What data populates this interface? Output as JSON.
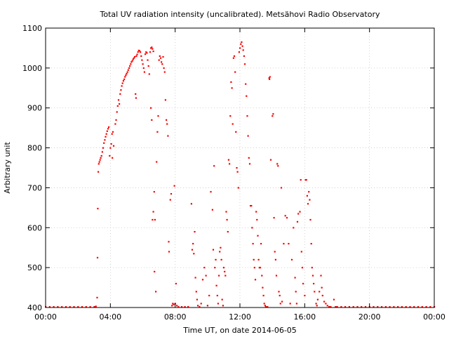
{
  "chart_data": {
    "type": "scatter",
    "title": "Total UV radiation intensity (uncalibrated). Metsähovi Radio Observatory",
    "xlabel": "Time UT, on date 2014-06-05",
    "ylabel": "Arbitrary unit",
    "xlim": [
      0,
      24
    ],
    "ylim": [
      400,
      1100
    ],
    "grid": true,
    "x_ticks": [
      {
        "value": 0,
        "label": "00:00"
      },
      {
        "value": 4,
        "label": "04:00"
      },
      {
        "value": 8,
        "label": "08:00"
      },
      {
        "value": 12,
        "label": "12:00"
      },
      {
        "value": 16,
        "label": "16:00"
      },
      {
        "value": 20,
        "label": "20:00"
      },
      {
        "value": 24,
        "label": "00:00"
      }
    ],
    "y_ticks": [
      {
        "value": 400,
        "label": "400"
      },
      {
        "value": 500,
        "label": "500"
      },
      {
        "value": 600,
        "label": "600"
      },
      {
        "value": 700,
        "label": "700"
      },
      {
        "value": 800,
        "label": "800"
      },
      {
        "value": 900,
        "label": "900"
      },
      {
        "value": 1000,
        "label": "1000"
      },
      {
        "value": 1100,
        "label": "1100"
      }
    ],
    "marker_color": "#ff0000",
    "series": [
      {
        "points": [
          [
            0.0,
            400
          ],
          [
            0.25,
            400
          ],
          [
            0.5,
            400
          ],
          [
            0.75,
            400
          ],
          [
            1.0,
            400
          ],
          [
            1.25,
            400
          ],
          [
            1.5,
            400
          ],
          [
            1.75,
            400
          ],
          [
            2.0,
            400
          ],
          [
            2.25,
            400
          ],
          [
            2.5,
            400
          ],
          [
            2.75,
            400
          ],
          [
            3.0,
            401
          ],
          [
            3.1,
            403
          ],
          [
            3.18,
            425
          ],
          [
            3.2,
            525
          ],
          [
            3.22,
            648
          ],
          [
            3.25,
            740
          ],
          [
            3.28,
            760
          ],
          [
            3.32,
            765
          ],
          [
            3.36,
            770
          ],
          [
            3.4,
            775
          ],
          [
            3.45,
            780
          ],
          [
            3.5,
            790
          ],
          [
            3.55,
            800
          ],
          [
            3.6,
            812
          ],
          [
            3.65,
            820
          ],
          [
            3.7,
            828
          ],
          [
            3.75,
            835
          ],
          [
            3.8,
            842
          ],
          [
            3.85,
            848
          ],
          [
            3.9,
            852
          ],
          [
            3.95,
            780
          ],
          [
            4.0,
            800
          ],
          [
            4.05,
            810
          ],
          [
            4.1,
            835
          ],
          [
            4.12,
            775
          ],
          [
            4.15,
            840
          ],
          [
            4.2,
            805
          ],
          [
            4.3,
            860
          ],
          [
            4.35,
            870
          ],
          [
            4.4,
            890
          ],
          [
            4.45,
            905
          ],
          [
            4.5,
            920
          ],
          [
            4.55,
            910
          ],
          [
            4.6,
            935
          ],
          [
            4.65,
            945
          ],
          [
            4.7,
            955
          ],
          [
            4.75,
            962
          ],
          [
            4.8,
            968
          ],
          [
            4.85,
            972
          ],
          [
            4.9,
            978
          ],
          [
            4.95,
            982
          ],
          [
            5.0,
            986
          ],
          [
            5.05,
            990
          ],
          [
            5.1,
            995
          ],
          [
            5.15,
            1000
          ],
          [
            5.2,
            1005
          ],
          [
            5.25,
            1010
          ],
          [
            5.3,
            1015
          ],
          [
            5.35,
            1018
          ],
          [
            5.4,
            1022
          ],
          [
            5.45,
            1025
          ],
          [
            5.5,
            1028
          ],
          [
            5.55,
            935
          ],
          [
            5.58,
            925
          ],
          [
            5.6,
            1030
          ],
          [
            5.65,
            1034
          ],
          [
            5.7,
            1040
          ],
          [
            5.75,
            1044
          ],
          [
            5.8,
            1043
          ],
          [
            5.85,
            1040
          ],
          [
            5.9,
            1030
          ],
          [
            5.95,
            1020
          ],
          [
            6.0,
            1010
          ],
          [
            6.05,
            1000
          ],
          [
            6.1,
            990
          ],
          [
            6.15,
            1035
          ],
          [
            6.2,
            1040
          ],
          [
            6.25,
            1038
          ],
          [
            6.3,
            1020
          ],
          [
            6.35,
            1005
          ],
          [
            6.4,
            985
          ],
          [
            6.45,
            1040
          ],
          [
            6.5,
            1050
          ],
          [
            6.55,
            1052
          ],
          [
            6.6,
            1048
          ],
          [
            6.65,
            1042
          ],
          [
            6.5,
            900
          ],
          [
            6.55,
            870
          ],
          [
            6.6,
            620
          ],
          [
            6.65,
            640
          ],
          [
            6.7,
            690
          ],
          [
            6.72,
            490
          ],
          [
            6.75,
            620
          ],
          [
            6.8,
            440
          ],
          [
            6.85,
            765
          ],
          [
            6.9,
            840
          ],
          [
            6.95,
            880
          ],
          [
            7.0,
            1020
          ],
          [
            7.05,
            1030
          ],
          [
            7.1,
            1025
          ],
          [
            7.15,
            1015
          ],
          [
            7.2,
            1010
          ],
          [
            7.25,
            1028
          ],
          [
            7.3,
            1000
          ],
          [
            7.35,
            990
          ],
          [
            7.4,
            920
          ],
          [
            7.45,
            870
          ],
          [
            7.5,
            860
          ],
          [
            7.55,
            830
          ],
          [
            7.6,
            565
          ],
          [
            7.62,
            540
          ],
          [
            7.7,
            670
          ],
          [
            7.75,
            685
          ],
          [
            7.8,
            405
          ],
          [
            7.85,
            410
          ],
          [
            7.9,
            408
          ],
          [
            7.95,
            705
          ],
          [
            8.0,
            410
          ],
          [
            8.05,
            460
          ],
          [
            8.1,
            405
          ],
          [
            8.2,
            402
          ],
          [
            8.4,
            401
          ],
          [
            8.6,
            400
          ],
          [
            8.8,
            402
          ],
          [
            9.0,
            660
          ],
          [
            9.05,
            545
          ],
          [
            9.1,
            560
          ],
          [
            9.15,
            535
          ],
          [
            9.2,
            590
          ],
          [
            9.25,
            475
          ],
          [
            9.3,
            440
          ],
          [
            9.35,
            420
          ],
          [
            9.4,
            405
          ],
          [
            9.5,
            402
          ],
          [
            9.6,
            410
          ],
          [
            9.7,
            470
          ],
          [
            9.8,
            500
          ],
          [
            9.9,
            480
          ],
          [
            10.0,
            405
          ],
          [
            10.1,
            430
          ],
          [
            10.2,
            690
          ],
          [
            10.3,
            645
          ],
          [
            10.35,
            545
          ],
          [
            10.4,
            755
          ],
          [
            10.45,
            500
          ],
          [
            10.5,
            520
          ],
          [
            10.55,
            455
          ],
          [
            10.6,
            430
          ],
          [
            10.65,
            410
          ],
          [
            10.7,
            480
          ],
          [
            10.75,
            540
          ],
          [
            10.8,
            550
          ],
          [
            10.85,
            520
          ],
          [
            10.9,
            420
          ],
          [
            10.95,
            405
          ],
          [
            11.0,
            500
          ],
          [
            11.05,
            490
          ],
          [
            11.1,
            480
          ],
          [
            11.15,
            640
          ],
          [
            11.2,
            620
          ],
          [
            11.25,
            590
          ],
          [
            11.3,
            770
          ],
          [
            11.35,
            760
          ],
          [
            11.4,
            880
          ],
          [
            11.45,
            965
          ],
          [
            11.5,
            950
          ],
          [
            11.55,
            860
          ],
          [
            11.6,
            1025
          ],
          [
            11.65,
            1030
          ],
          [
            11.7,
            990
          ],
          [
            11.75,
            840
          ],
          [
            11.8,
            750
          ],
          [
            11.85,
            740
          ],
          [
            11.9,
            700
          ],
          [
            11.95,
            1040
          ],
          [
            12.0,
            1050
          ],
          [
            12.05,
            1060
          ],
          [
            12.1,
            1065
          ],
          [
            12.15,
            1055
          ],
          [
            12.2,
            1045
          ],
          [
            12.25,
            1030
          ],
          [
            12.3,
            1010
          ],
          [
            12.35,
            960
          ],
          [
            12.4,
            930
          ],
          [
            12.45,
            880
          ],
          [
            12.5,
            830
          ],
          [
            12.55,
            775
          ],
          [
            12.6,
            760
          ],
          [
            12.65,
            655
          ],
          [
            12.7,
            655
          ],
          [
            12.75,
            600
          ],
          [
            12.8,
            560
          ],
          [
            12.85,
            520
          ],
          [
            12.9,
            500
          ],
          [
            12.95,
            470
          ],
          [
            13.0,
            640
          ],
          [
            13.05,
            620
          ],
          [
            13.1,
            580
          ],
          [
            13.15,
            520
          ],
          [
            13.2,
            500
          ],
          [
            13.25,
            500
          ],
          [
            13.3,
            560
          ],
          [
            13.35,
            480
          ],
          [
            13.4,
            450
          ],
          [
            13.45,
            430
          ],
          [
            13.5,
            410
          ],
          [
            13.55,
            405
          ],
          [
            13.6,
            402
          ],
          [
            13.7,
            401
          ],
          [
            13.8,
            975
          ],
          [
            13.82,
            972
          ],
          [
            13.85,
            978
          ],
          [
            13.9,
            770
          ],
          [
            14.0,
            880
          ],
          [
            14.05,
            885
          ],
          [
            14.1,
            625
          ],
          [
            14.15,
            540
          ],
          [
            14.2,
            520
          ],
          [
            14.25,
            480
          ],
          [
            14.3,
            760
          ],
          [
            14.35,
            755
          ],
          [
            14.4,
            440
          ],
          [
            14.45,
            430
          ],
          [
            14.5,
            410
          ],
          [
            14.55,
            700
          ],
          [
            14.6,
            415
          ],
          [
            14.7,
            560
          ],
          [
            14.8,
            630
          ],
          [
            14.9,
            625
          ],
          [
            15.0,
            560
          ],
          [
            15.1,
            410
          ],
          [
            15.2,
            520
          ],
          [
            15.3,
            600
          ],
          [
            15.4,
            475
          ],
          [
            15.45,
            440
          ],
          [
            15.5,
            410
          ],
          [
            15.55,
            615
          ],
          [
            15.6,
            635
          ],
          [
            15.7,
            640
          ],
          [
            15.75,
            720
          ],
          [
            15.8,
            540
          ],
          [
            15.85,
            500
          ],
          [
            15.9,
            460
          ],
          [
            16.0,
            430
          ],
          [
            16.05,
            720
          ],
          [
            16.1,
            720
          ],
          [
            16.15,
            680
          ],
          [
            16.2,
            660
          ],
          [
            16.25,
            690
          ],
          [
            16.3,
            670
          ],
          [
            16.35,
            620
          ],
          [
            16.4,
            560
          ],
          [
            16.45,
            500
          ],
          [
            16.5,
            480
          ],
          [
            16.55,
            460
          ],
          [
            16.6,
            440
          ],
          [
            16.7,
            410
          ],
          [
            16.75,
            405
          ],
          [
            16.8,
            420
          ],
          [
            16.9,
            440
          ],
          [
            17.0,
            480
          ],
          [
            17.05,
            450
          ],
          [
            17.1,
            430
          ],
          [
            17.2,
            415
          ],
          [
            17.3,
            410
          ],
          [
            17.4,
            405
          ],
          [
            17.5,
            402
          ],
          [
            17.6,
            401
          ],
          [
            17.8,
            420
          ],
          [
            17.9,
            400
          ],
          [
            18.0,
            400
          ],
          [
            18.25,
            400
          ],
          [
            18.5,
            400
          ],
          [
            18.75,
            400
          ],
          [
            19.0,
            400
          ],
          [
            19.25,
            400
          ],
          [
            19.5,
            400
          ],
          [
            19.75,
            400
          ],
          [
            20.0,
            400
          ],
          [
            20.25,
            400
          ],
          [
            20.5,
            400
          ],
          [
            20.75,
            400
          ],
          [
            21.0,
            400
          ],
          [
            21.25,
            400
          ],
          [
            21.5,
            400
          ],
          [
            21.75,
            400
          ],
          [
            22.0,
            400
          ],
          [
            22.25,
            400
          ],
          [
            22.5,
            400
          ],
          [
            22.75,
            400
          ],
          [
            23.0,
            400
          ],
          [
            23.25,
            400
          ],
          [
            23.5,
            400
          ],
          [
            23.75,
            400
          ],
          [
            24.0,
            400
          ]
        ]
      }
    ]
  }
}
